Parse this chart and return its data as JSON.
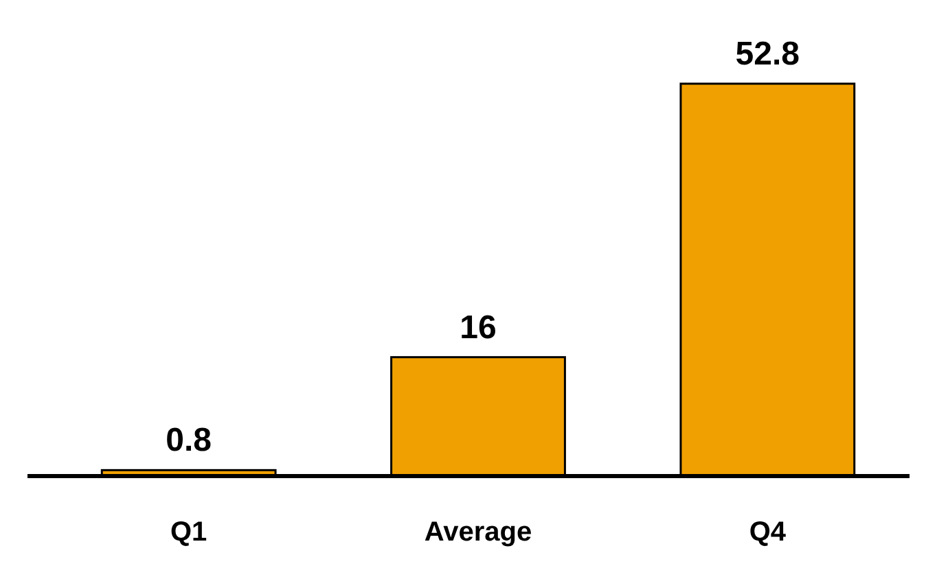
{
  "chart_data": {
    "type": "bar",
    "categories": [
      "Q1",
      "Average",
      "Q4"
    ],
    "values": [
      0.8,
      16,
      52.8
    ],
    "color": "#f0a000",
    "data_labels": true
  }
}
